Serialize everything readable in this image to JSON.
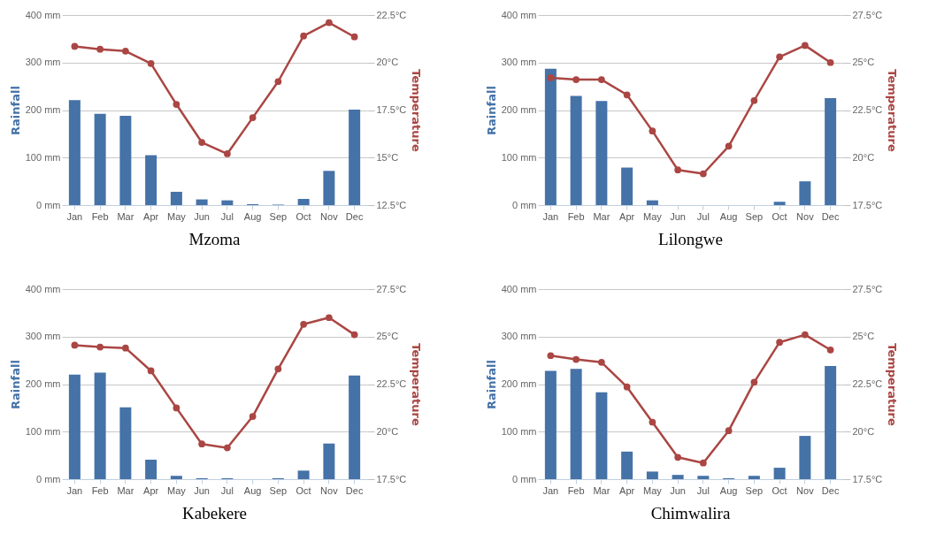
{
  "chart_data": [
    {
      "type": "bar",
      "title": "Mzoma",
      "categories": [
        "Jan",
        "Feb",
        "Mar",
        "Apr",
        "May",
        "Jun",
        "Jul",
        "Aug",
        "Sep",
        "Oct",
        "Nov",
        "Dec"
      ],
      "ylabel": "Rainfall",
      "y2label": "Temperature",
      "ylim": [
        0,
        400
      ],
      "yticks": [
        {
          "value": 0,
          "label": "0 mm"
        },
        {
          "value": 100,
          "label": "100 mm"
        },
        {
          "value": 200,
          "label": "200 mm"
        },
        {
          "value": 300,
          "label": "300 mm"
        },
        {
          "value": 400,
          "label": "400 mm"
        }
      ],
      "y2lim": [
        12.5,
        22.5
      ],
      "y2ticks": [
        {
          "value": 12.5,
          "label": "12.5°C"
        },
        {
          "value": 15,
          "label": "15°C"
        },
        {
          "value": 17.5,
          "label": "17.5°C"
        },
        {
          "value": 20,
          "label": "20°C"
        },
        {
          "value": 22.5,
          "label": "22.5°C"
        }
      ],
      "grid": "y",
      "marker": "circle",
      "series": [
        {
          "color": "#4572a7",
          "values": [
            221,
            192,
            188,
            105,
            28,
            12,
            10,
            2,
            1,
            13,
            72,
            201
          ]
        },
        {
          "type": "line",
          "axis": "y2",
          "color": "#aa4643",
          "values": [
            20.85,
            20.7,
            20.6,
            19.95,
            17.8,
            15.8,
            15.2,
            17.1,
            19.0,
            21.4,
            22.1,
            21.35
          ]
        }
      ]
    },
    {
      "type": "bar",
      "title": "Lilongwe",
      "categories": [
        "Jan",
        "Feb",
        "Mar",
        "Apr",
        "May",
        "Jun",
        "Jul",
        "Aug",
        "Sep",
        "Oct",
        "Nov",
        "Dec"
      ],
      "ylabel": "Rainfall",
      "y2label": "Temperature",
      "ylim": [
        0,
        400
      ],
      "yticks": [
        {
          "value": 0,
          "label": "0 mm"
        },
        {
          "value": 100,
          "label": "100 mm"
        },
        {
          "value": 200,
          "label": "200 mm"
        },
        {
          "value": 300,
          "label": "300 mm"
        },
        {
          "value": 400,
          "label": "400 mm"
        }
      ],
      "y2lim": [
        17.5,
        27.5
      ],
      "y2ticks": [
        {
          "value": 17.5,
          "label": "17.5°C"
        },
        {
          "value": 20,
          "label": "20°C"
        },
        {
          "value": 22.5,
          "label": "22.5°C"
        },
        {
          "value": 25,
          "label": "25°C"
        },
        {
          "value": 27.5,
          "label": "27.5°C"
        }
      ],
      "grid": "y",
      "marker": "circle",
      "series": [
        {
          "color": "#4572a7",
          "values": [
            287,
            230,
            219,
            79,
            10,
            0,
            0,
            0,
            0,
            7,
            50,
            225
          ]
        },
        {
          "type": "line",
          "axis": "y2",
          "color": "#aa4643",
          "values": [
            24.2,
            24.1,
            24.1,
            23.3,
            21.4,
            19.35,
            19.15,
            20.6,
            23.0,
            25.3,
            25.9,
            25.0
          ]
        }
      ]
    },
    {
      "type": "bar",
      "title": "Kabekere",
      "categories": [
        "Jan",
        "Feb",
        "Mar",
        "Apr",
        "May",
        "Jun",
        "Jul",
        "Aug",
        "Sep",
        "Oct",
        "Nov",
        "Dec"
      ],
      "ylabel": "Rainfall",
      "y2label": "Temperature",
      "ylim": [
        0,
        400
      ],
      "yticks": [
        {
          "value": 0,
          "label": "0 mm"
        },
        {
          "value": 100,
          "label": "100 mm"
        },
        {
          "value": 200,
          "label": "200 mm"
        },
        {
          "value": 300,
          "label": "300 mm"
        },
        {
          "value": 400,
          "label": "400 mm"
        }
      ],
      "y2lim": [
        17.5,
        27.5
      ],
      "y2ticks": [
        {
          "value": 17.5,
          "label": "17.5°C"
        },
        {
          "value": 20,
          "label": "20°C"
        },
        {
          "value": 22.5,
          "label": "22.5°C"
        },
        {
          "value": 25,
          "label": "25°C"
        },
        {
          "value": 27.5,
          "label": "27.5°C"
        }
      ],
      "grid": "y",
      "marker": "circle",
      "series": [
        {
          "color": "#4572a7",
          "values": [
            220,
            224,
            151,
            41,
            7,
            2,
            2,
            0,
            2,
            18,
            75,
            218
          ]
        },
        {
          "type": "line",
          "axis": "y2",
          "color": "#aa4643",
          "values": [
            24.55,
            24.45,
            24.4,
            23.2,
            21.25,
            19.35,
            19.15,
            20.8,
            23.3,
            25.65,
            26.0,
            25.1
          ]
        }
      ]
    },
    {
      "type": "bar",
      "title": "Chimwalira",
      "categories": [
        "Jan",
        "Feb",
        "Mar",
        "Apr",
        "May",
        "Jun",
        "Jul",
        "Aug",
        "Sep",
        "Oct",
        "Nov",
        "Dec"
      ],
      "ylabel": "Rainfall",
      "y2label": "Temperature",
      "ylim": [
        0,
        400
      ],
      "yticks": [
        {
          "value": 0,
          "label": "0 mm"
        },
        {
          "value": 100,
          "label": "100 mm"
        },
        {
          "value": 200,
          "label": "200 mm"
        },
        {
          "value": 300,
          "label": "300 mm"
        },
        {
          "value": 400,
          "label": "400 mm"
        }
      ],
      "y2lim": [
        17.5,
        27.5
      ],
      "y2ticks": [
        {
          "value": 17.5,
          "label": "17.5°C"
        },
        {
          "value": 20,
          "label": "20°C"
        },
        {
          "value": 22.5,
          "label": "22.5°C"
        },
        {
          "value": 25,
          "label": "25°C"
        },
        {
          "value": 27.5,
          "label": "27.5°C"
        }
      ],
      "grid": "y",
      "marker": "circle",
      "series": [
        {
          "color": "#4572a7",
          "values": [
            228,
            232,
            183,
            58,
            16,
            9,
            7,
            2,
            7,
            24,
            91,
            238
          ]
        },
        {
          "type": "line",
          "axis": "y2",
          "color": "#aa4643",
          "values": [
            24.0,
            23.8,
            23.65,
            22.35,
            20.5,
            18.65,
            18.35,
            20.05,
            22.6,
            24.7,
            25.1,
            24.3
          ]
        }
      ]
    }
  ]
}
